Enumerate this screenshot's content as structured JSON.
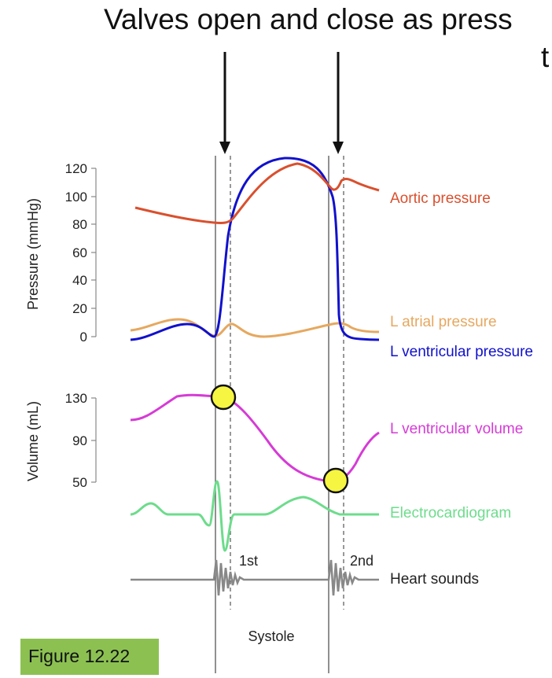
{
  "heading": {
    "line1": "Valves open and close as press",
    "line2": "t"
  },
  "pressure_axis": {
    "label": "Pressure (mmHg)",
    "ticks": [
      "120",
      "100",
      "80",
      "60",
      "40",
      "20",
      "0"
    ]
  },
  "volume_axis": {
    "label": "Volume (mL)",
    "ticks": [
      "130",
      "90",
      "50"
    ]
  },
  "curves": {
    "aortic_pressure": "Aortic pressure",
    "l_atrial_pressure": "L atrial pressure",
    "l_ventricular_pressure": "L ventricular pressure",
    "l_ventricular_volume": "L ventricular volume",
    "electrocardiogram": "Electrocardiogram",
    "heart_sounds": "Heart sounds"
  },
  "sounds": {
    "first": "1st",
    "second": "2nd"
  },
  "phase": "Systole",
  "figure_label": "Figure 12.22",
  "colors": {
    "aortic": "#d9502e",
    "atrial": "#e6a85f",
    "ventricular_pressure": "#1111cc",
    "volume": "#d63bd6",
    "ecg": "#6ddc8c",
    "heart_sounds": "#888888",
    "highlight": "#f5f542",
    "badge": "#8cc152"
  }
}
